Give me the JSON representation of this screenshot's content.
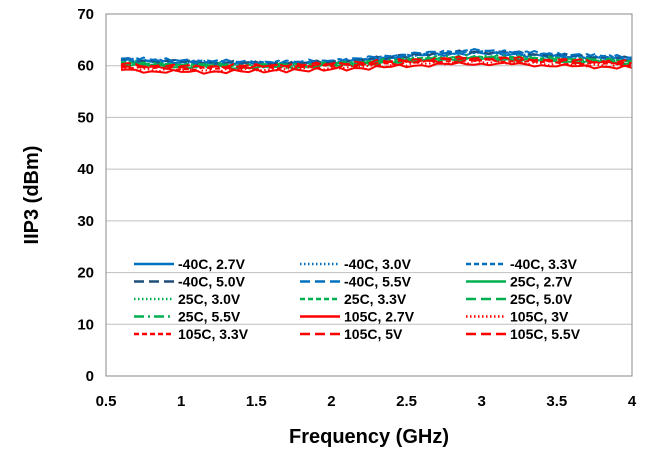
{
  "chart_data": {
    "type": "line",
    "title": "",
    "xlabel": "Frequency (GHz)",
    "ylabel": "IIP3 (dBm)",
    "xlim": [
      0.5,
      4
    ],
    "ylim": [
      0,
      70
    ],
    "xticks": [
      0.5,
      1,
      1.5,
      2,
      2.5,
      3,
      3.5,
      4
    ],
    "xtick_labels": [
      "0.5",
      "1",
      "1.5",
      "2",
      "2.5",
      "3",
      "3.5",
      "4"
    ],
    "yticks": [
      0,
      10,
      20,
      30,
      40,
      50,
      60,
      70
    ],
    "ytick_labels": [
      "0",
      "10",
      "20",
      "30",
      "40",
      "50",
      "60",
      "70"
    ],
    "grid": "horizontal",
    "legend_position": "lower-center, inside plot, 3 columns",
    "x": [
      0.6,
      0.8,
      1.0,
      1.2,
      1.4,
      1.6,
      1.8,
      2.0,
      2.2,
      2.4,
      2.6,
      2.8,
      3.0,
      3.2,
      3.4,
      3.6,
      3.8,
      4.0
    ],
    "series": [
      {
        "name": "-40C, 2.7V",
        "color": "#0070C0",
        "dash": "solid",
        "values": [
          61.0,
          60.8,
          60.6,
          60.5,
          60.4,
          60.3,
          60.4,
          60.6,
          61.0,
          61.5,
          62.0,
          62.3,
          62.4,
          62.2,
          61.9,
          61.7,
          61.5,
          61.2
        ]
      },
      {
        "name": "-40C, 3.0V",
        "color": "#0070C0",
        "dash": "dot",
        "values": [
          61.1,
          60.9,
          60.7,
          60.6,
          60.5,
          60.4,
          60.5,
          60.7,
          61.1,
          61.6,
          62.1,
          62.4,
          62.5,
          62.3,
          62.0,
          61.8,
          61.6,
          61.3
        ]
      },
      {
        "name": "-40C, 3.3V",
        "color": "#0070C0",
        "dash": "shortdash",
        "values": [
          61.3,
          61.1,
          60.9,
          60.8,
          60.7,
          60.6,
          60.7,
          60.9,
          61.3,
          61.8,
          62.3,
          62.7,
          62.8,
          62.6,
          62.3,
          62.0,
          61.8,
          61.5
        ]
      },
      {
        "name": "-40C, 5.0V",
        "color": "#1F4E79",
        "dash": "longdash",
        "values": [
          61.2,
          61.0,
          60.8,
          60.7,
          60.6,
          60.5,
          60.6,
          60.8,
          61.2,
          61.7,
          62.2,
          62.6,
          62.7,
          62.5,
          62.2,
          61.9,
          61.7,
          61.4
        ]
      },
      {
        "name": "-40C, 5.5V",
        "color": "#0070C0",
        "dash": "longdash",
        "values": [
          61.4,
          61.2,
          61.0,
          60.9,
          60.8,
          60.7,
          60.8,
          61.0,
          61.4,
          61.9,
          62.4,
          62.8,
          62.9,
          62.7,
          62.4,
          62.1,
          61.9,
          61.6
        ]
      },
      {
        "name": "25C, 2.7V",
        "color": "#00B050",
        "dash": "solid",
        "values": [
          60.3,
          60.0,
          59.8,
          59.8,
          59.7,
          59.7,
          59.8,
          60.0,
          60.3,
          60.7,
          61.0,
          61.2,
          61.3,
          61.2,
          61.0,
          60.8,
          60.7,
          60.5
        ]
      },
      {
        "name": "25C, 3.0V",
        "color": "#00B050",
        "dash": "dot",
        "values": [
          60.4,
          60.1,
          59.9,
          59.9,
          59.8,
          59.8,
          59.9,
          60.1,
          60.4,
          60.8,
          61.1,
          61.3,
          61.4,
          61.3,
          61.1,
          60.9,
          60.8,
          60.6
        ]
      },
      {
        "name": "25C, 3.3V",
        "color": "#00B050",
        "dash": "shortdash",
        "values": [
          60.6,
          60.3,
          60.1,
          60.1,
          60.0,
          60.0,
          60.1,
          60.3,
          60.6,
          61.0,
          61.4,
          61.6,
          61.7,
          61.6,
          61.4,
          61.2,
          61.0,
          60.8
        ]
      },
      {
        "name": "25C, 5.0V",
        "color": "#00B050",
        "dash": "longdash",
        "values": [
          60.5,
          60.2,
          60.0,
          60.0,
          59.9,
          59.9,
          60.0,
          60.2,
          60.5,
          60.9,
          61.2,
          61.4,
          61.5,
          61.4,
          61.2,
          61.0,
          60.9,
          60.7
        ]
      },
      {
        "name": "25C, 5.5V",
        "color": "#00B050",
        "dash": "dashdot",
        "values": [
          60.7,
          60.4,
          60.2,
          60.2,
          60.1,
          60.1,
          60.2,
          60.4,
          60.7,
          61.1,
          61.5,
          61.7,
          61.8,
          61.7,
          61.5,
          61.3,
          61.1,
          60.9
        ]
      },
      {
        "name": "105C, 2.7V",
        "color": "#FF0000",
        "dash": "solid",
        "values": [
          59.2,
          58.9,
          58.8,
          58.8,
          58.9,
          59.0,
          59.1,
          59.3,
          59.5,
          59.8,
          60.1,
          60.3,
          60.4,
          60.3,
          60.1,
          59.9,
          59.8,
          59.6
        ]
      },
      {
        "name": "105C, 3V",
        "color": "#FF0000",
        "dash": "dot",
        "values": [
          59.5,
          59.2,
          59.1,
          59.1,
          59.2,
          59.3,
          59.4,
          59.6,
          59.8,
          60.1,
          60.4,
          60.6,
          60.7,
          60.6,
          60.4,
          60.2,
          60.1,
          59.9
        ]
      },
      {
        "name": "105C, 3.3V",
        "color": "#FF0000",
        "dash": "shortdash",
        "values": [
          59.8,
          59.5,
          59.4,
          59.4,
          59.5,
          59.6,
          59.7,
          59.9,
          60.1,
          60.4,
          60.7,
          60.9,
          61.0,
          60.9,
          60.7,
          60.5,
          60.4,
          60.2
        ]
      },
      {
        "name": "105C, 5V",
        "color": "#FF0000",
        "dash": "longdash",
        "values": [
          60.1,
          59.8,
          59.7,
          59.7,
          59.8,
          59.9,
          60.0,
          60.2,
          60.4,
          60.7,
          61.0,
          61.2,
          61.3,
          61.2,
          61.0,
          60.8,
          60.7,
          60.5
        ]
      },
      {
        "name": "105C, 5.5V",
        "color": "#FF0000",
        "dash": "longdash",
        "values": [
          60.3,
          60.0,
          59.9,
          59.9,
          60.0,
          60.1,
          60.2,
          60.4,
          60.6,
          60.9,
          61.2,
          61.4,
          61.5,
          61.4,
          61.2,
          61.0,
          60.9,
          60.7
        ]
      }
    ]
  }
}
